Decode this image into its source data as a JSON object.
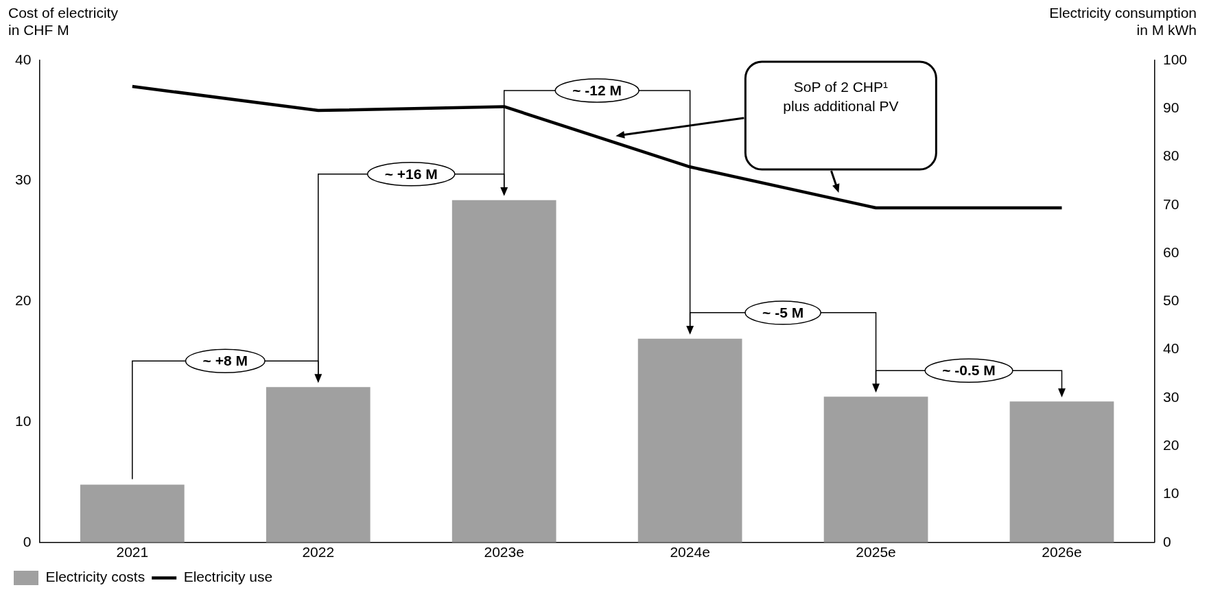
{
  "chart_data": {
    "type": "bar",
    "ylabel": "Cost of electricity\nin CHF M",
    "y2label": "Electricity consumption\nin M kWh",
    "categories": [
      "2021",
      "2022",
      "2023e",
      "2024e",
      "2025e",
      "2026e"
    ],
    "series": [
      {
        "name": "Electricity costs",
        "color": "#a0a0a0",
        "values": [
          4.8,
          12.9,
          28.4,
          16.9,
          12.1,
          11.7
        ]
      },
      {
        "name": "Electricity use",
        "type": "line",
        "axis": "y2",
        "color": "#000000",
        "values": [
          94.6,
          89.6,
          90.4,
          77.9,
          69.4,
          69.4
        ]
      }
    ],
    "ylim": [
      0,
      40
    ],
    "yticks": [
      0,
      10,
      20,
      30,
      40
    ],
    "y2lim": [
      0,
      100
    ],
    "y2ticks": [
      0,
      10,
      20,
      30,
      40,
      50,
      60,
      70,
      80,
      90,
      100
    ],
    "grid": false,
    "legend": "bottom left",
    "marker": "none",
    "annotations": [
      "~ +8 M",
      "~ +16 M",
      "~ -12 M",
      "~ -5 M",
      "~ -0.5 M",
      "SoP of 2 CHP¹\nplus additional PV"
    ]
  }
}
